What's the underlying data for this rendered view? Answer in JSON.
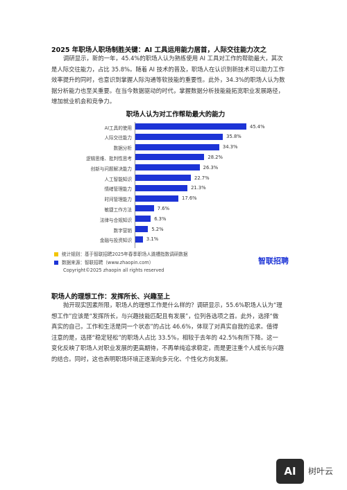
{
  "section1": {
    "heading": "2025 年职场人职场制胜关键：AI 工具运用能力居首，人际交往能力次之",
    "paragraph_lines": [
      "调研显示，新的一年，45.4%的职场人认为熟练使用 AI 工具对工作的帮助最大，其次",
      "是人际交往能力，占比 35.8%。随着 AI 技术的普及，职场人在认识到新技术可以助力工作",
      "效率提升的同时，也意识到掌握人际沟通等软技能的重要性。此外，34.3%的职场人认为数",
      "据分析能力也至关重要。在当今数据驱动的时代，掌握数据分析技能能拓宽职业发展路径，",
      "增加就业机会和竞争力。"
    ]
  },
  "chart": {
    "footnotes": [
      {
        "text": "统计规则：基于智联招聘2025年春季职场人跳槽指数调研数据",
        "color": "#f2c500"
      },
      {
        "text": "数据来源：智联招聘（www.zhaopin.com）",
        "color": "#1d34d6"
      }
    ],
    "logo": "智联招聘",
    "copyright": "Copyright©2025 zhaopin all rights reserved"
  },
  "chart_data": {
    "type": "bar",
    "orientation": "horizontal",
    "title": "职场人认为对工作帮助最大的能力",
    "categories": [
      "AI工具的使用",
      "人际交往能力",
      "数据分析",
      "逻辑思维、批判性思考",
      "创新与问题解决能力",
      "人工智能知识",
      "情绪管理能力",
      "时间管理能力",
      "敏捷工作方法",
      "法律与合规知识",
      "数字营销",
      "金融与投资知识"
    ],
    "values": [
      45.4,
      35.8,
      34.3,
      28.2,
      26.3,
      22.7,
      21.3,
      17.6,
      7.6,
      6.3,
      5.2,
      3.1
    ],
    "value_labels": [
      "45.4%",
      "35.8%",
      "34.3%",
      "28.2%",
      "26.3%",
      "22.7%",
      "21.3%",
      "17.6%",
      "7.6%",
      "6.3%",
      "5.2%",
      "3.1%"
    ],
    "unit": "%",
    "xlim": [
      0,
      50
    ],
    "bar_color": "#1d34d6",
    "grid": false,
    "legend": "none"
  },
  "section2": {
    "heading": "职场人的理想工作：发挥所长、兴趣至上",
    "paragraph_lines": [
      "抛开现实因素所限，职场人的理想工作是什么样的？调研显示，55.6%职场人认为“理",
      "想工作”应该是“发挥所长，与兴趣技能匹配且有发展”，位列各选项之首。此外，选择“做",
      "真实的自己，工作和生活是同一个状态”的占比 46.6%，体现了对真实自我的追求。值得",
      "注意的是，选择“稳定轻松”的职场人占比 33.5%，相较于去年的 42.5%有所下降。这一",
      "变化反映了职场人对职业发展的更高期待，不再单纯追求稳定，而是更注重个人成长与兴趣",
      "的结合。同时，这也表明职场环境正逐渐向多元化、个性化方向发展。"
    ]
  },
  "watermark": {
    "badge": "AI",
    "text": "树叶云"
  }
}
